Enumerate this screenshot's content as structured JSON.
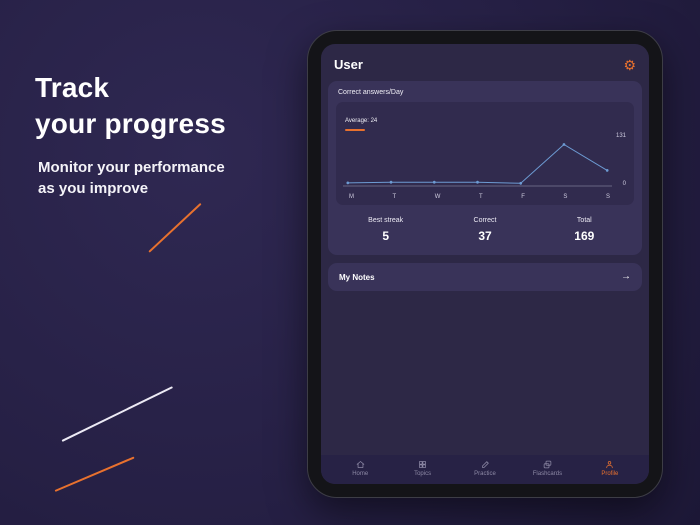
{
  "colors": {
    "accent": "#e8712e",
    "chart_line": "#6d9bd3"
  },
  "hero": {
    "title_line1": "Track",
    "title_line2": "your progress",
    "subtitle_line1": "Monitor your performance",
    "subtitle_line2": "as you improve"
  },
  "app": {
    "header": {
      "title": "User",
      "gear_glyph": "⚙"
    },
    "chart_card": {
      "title": "Correct answers/Day",
      "average_label": "Average: 24"
    },
    "stats": [
      {
        "label": "Best streak",
        "value": "5"
      },
      {
        "label": "Correct",
        "value": "37"
      },
      {
        "label": "Total",
        "value": "169"
      }
    ],
    "notes_card": {
      "title": "My Notes",
      "arrow_glyph": "→"
    },
    "tabbar": [
      {
        "label": "Home",
        "active": false
      },
      {
        "label": "Topics",
        "active": false
      },
      {
        "label": "Practice",
        "active": false
      },
      {
        "label": "Flashcards",
        "active": false
      },
      {
        "label": "Profile",
        "active": true
      }
    ]
  },
  "chart_data": {
    "type": "line",
    "title": "Correct answers/Day",
    "x": [
      "M",
      "T",
      "W",
      "T",
      "F",
      "S",
      "S"
    ],
    "values": [
      3,
      5,
      5,
      5,
      2,
      110,
      38
    ],
    "average": 24,
    "ylim": [
      0,
      131
    ],
    "y_tick_labels": [
      "131",
      "0"
    ],
    "line_color": "#6d9bd3",
    "xlabel": "",
    "ylabel": "",
    "grid": false,
    "legend": "none"
  }
}
